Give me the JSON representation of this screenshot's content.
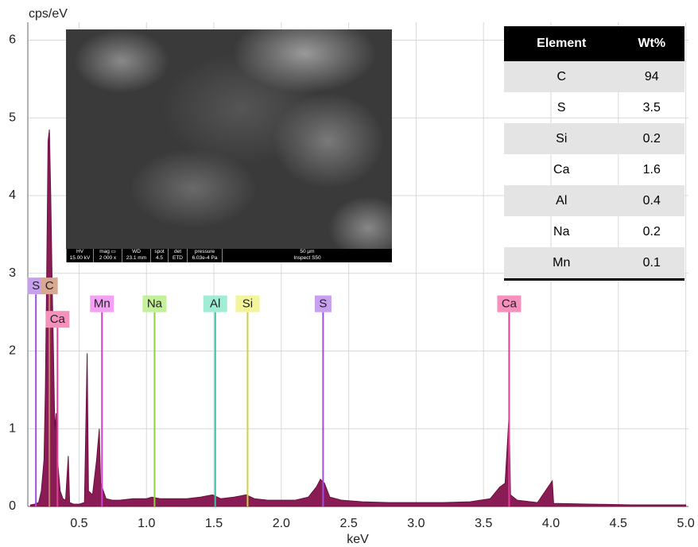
{
  "chart_data": {
    "type": "spectrum",
    "ylabel": "cps/eV",
    "xlabel": "keV",
    "xlim": [
      0.12,
      5.02
    ],
    "ylim": [
      0,
      6.23
    ],
    "xticks": [
      0.5,
      {
        "value": 1,
        "label": "1.0"
      },
      1.5,
      {
        "value": 2,
        "label": "2.0"
      },
      2.5,
      {
        "value": 3,
        "label": "3.0"
      },
      3.5,
      {
        "value": 4,
        "label": "4.0"
      },
      4.5,
      {
        "value": 5,
        "label": "5.0"
      }
    ],
    "yticks": [
      0,
      1,
      2,
      3,
      4,
      5,
      6
    ],
    "grid": true,
    "series": [
      {
        "color": "#8a1c55",
        "x": [
          0.14,
          0.17,
          0.2,
          0.22,
          0.24,
          0.25,
          0.26,
          0.27,
          0.28,
          0.29,
          0.3,
          0.31,
          0.32,
          0.33,
          0.34,
          0.36,
          0.38,
          0.4,
          0.42,
          0.43,
          0.46,
          0.5,
          0.54,
          0.56,
          0.57,
          0.6,
          0.63,
          0.65,
          0.66,
          0.7,
          0.75,
          0.8,
          0.9,
          1.0,
          1.04,
          1.1,
          1.2,
          1.3,
          1.4,
          1.49,
          1.55,
          1.65,
          1.74,
          1.8,
          1.9,
          2.0,
          2.1,
          2.2,
          2.26,
          2.29,
          2.32,
          2.36,
          2.45,
          2.6,
          2.8,
          3.0,
          3.2,
          3.4,
          3.55,
          3.62,
          3.66,
          3.69,
          3.7,
          3.75,
          3.9,
          4.01,
          4.02,
          4.3,
          4.6,
          5.0
        ],
        "values": [
          0.02,
          0.03,
          0.05,
          0.2,
          0.6,
          1.5,
          3.0,
          4.7,
          4.85,
          4.0,
          2.9,
          2.0,
          1.0,
          1.2,
          0.6,
          0.2,
          0.1,
          0.08,
          0.65,
          0.05,
          0.03,
          0.03,
          0.05,
          1.97,
          0.2,
          0.15,
          0.6,
          1.0,
          0.3,
          0.1,
          0.08,
          0.08,
          0.1,
          0.1,
          0.12,
          0.1,
          0.1,
          0.1,
          0.12,
          0.15,
          0.1,
          0.12,
          0.15,
          0.1,
          0.08,
          0.08,
          0.08,
          0.12,
          0.25,
          0.35,
          0.3,
          0.12,
          0.08,
          0.06,
          0.05,
          0.05,
          0.05,
          0.06,
          0.1,
          0.25,
          0.3,
          1.2,
          0.15,
          0.08,
          0.05,
          0.33,
          0.04,
          0.03,
          0.02,
          0.02
        ]
      }
    ],
    "markers": [
      {
        "label": "S",
        "x": 0.18,
        "height": 2.73,
        "color": "#a050e0",
        "box": "#c8a0f0"
      },
      {
        "label": "C",
        "x": 0.28,
        "height": 2.73,
        "color": "#c08070",
        "box": "#d8a890"
      },
      {
        "label": "Ca",
        "x": 0.34,
        "height": 2.3,
        "color": "#e0409a",
        "box": "#f690bc"
      },
      {
        "label": "Mn",
        "x": 0.67,
        "height": 2.5,
        "color": "#d040d0",
        "box": "#f4a0f4"
      },
      {
        "label": "Na",
        "x": 1.06,
        "height": 2.5,
        "color": "#90d040",
        "box": "#c4f09a"
      },
      {
        "label": "Al",
        "x": 1.51,
        "height": 2.5,
        "color": "#40c0a0",
        "box": "#a0ecd4"
      },
      {
        "label": "Si",
        "x": 1.75,
        "height": 2.5,
        "color": "#d0d040",
        "box": "#f4f49a"
      },
      {
        "label": "S",
        "x": 2.31,
        "height": 2.5,
        "color": "#a050e0",
        "box": "#c8a0f0"
      },
      {
        "label": "Ca",
        "x": 3.69,
        "height": 2.5,
        "color": "#e0409a",
        "box": "#f690bc"
      }
    ]
  },
  "sem_info": {
    "headers": [
      "HV",
      "mag ▭",
      "WD",
      "spot",
      "det",
      "pressure",
      "50 µm"
    ],
    "values": [
      "15.00 kV",
      "2 000 x",
      "23.1 mm",
      "4.5",
      "ETD",
      "6.03e-4 Pa",
      "Inspect S50"
    ]
  },
  "table": {
    "header": [
      "Element",
      "Wt%"
    ],
    "rows": [
      [
        "C",
        "94"
      ],
      [
        "S",
        "3.5"
      ],
      [
        "Si",
        "0.2"
      ],
      [
        "Ca",
        "1.6"
      ],
      [
        "Al",
        "0.4"
      ],
      [
        "Na",
        "0.2"
      ],
      [
        "Mn",
        "0.1"
      ]
    ]
  }
}
